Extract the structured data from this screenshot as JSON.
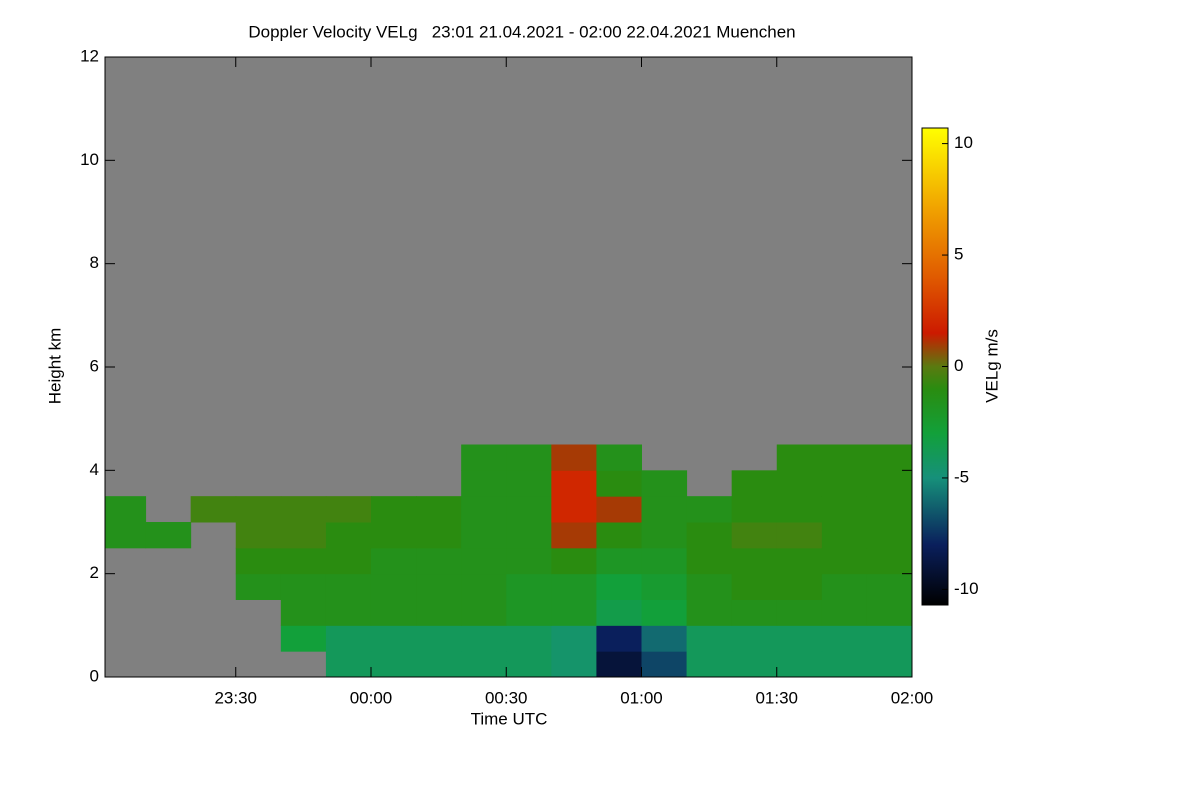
{
  "chart_data": {
    "type": "heatmap",
    "title": "Doppler Velocity VELg   23:01 21.04.2021 - 02:00 22.04.2021 Muenchen",
    "x_label": "Time UTC",
    "y_label": "Height km",
    "colorbar_label": "VELg m/s",
    "background_color": "#808080",
    "xlim": [
      1,
      180
    ],
    "xticks": [
      {
        "value": 30,
        "label": "23:30"
      },
      {
        "value": 60,
        "label": "00:00"
      },
      {
        "value": 90,
        "label": "00:30"
      },
      {
        "value": 120,
        "label": "01:00"
      },
      {
        "value": 150,
        "label": "01:30"
      },
      {
        "value": 180,
        "label": "02:00"
      }
    ],
    "ylim": [
      0,
      12
    ],
    "yticks": [
      0,
      2,
      4,
      6,
      8,
      10,
      12
    ],
    "zlim": [
      -10.7,
      10.7
    ],
    "zticks": [
      -10,
      -5,
      0,
      5,
      10
    ],
    "colorscale": [
      {
        "value": -10.7,
        "color": "#000000"
      },
      {
        "value": -8,
        "color": "#0a1f5c"
      },
      {
        "value": -5,
        "color": "#16907a"
      },
      {
        "value": -3,
        "color": "#12a03a"
      },
      {
        "value": -1,
        "color": "#2a8c10"
      },
      {
        "value": 0,
        "color": "#5a7a10"
      },
      {
        "value": 1.5,
        "color": "#cc1a00"
      },
      {
        "value": 4,
        "color": "#e05a00"
      },
      {
        "value": 7,
        "color": "#f0a000"
      },
      {
        "value": 10.7,
        "color": "#ffff00"
      }
    ],
    "x_bins": [
      0,
      10,
      20,
      30,
      40,
      50,
      60,
      70,
      80,
      90,
      100,
      110,
      120,
      130,
      140,
      150,
      160,
      170,
      180
    ],
    "y_bins": [
      0,
      0.5,
      1,
      1.5,
      2,
      2.5,
      3,
      3.5,
      4,
      4.5
    ],
    "values": [
      [
        null,
        null,
        null,
        null,
        null,
        -4,
        -4,
        -4,
        -4,
        -4,
        -4.5,
        -9,
        -7,
        -4,
        -4,
        -4,
        -4,
        -4
      ],
      [
        null,
        null,
        null,
        null,
        -3,
        -4,
        -4,
        -4,
        -4,
        -4,
        -4.5,
        -8,
        -6,
        -4,
        -4,
        -4,
        -4,
        -4
      ],
      [
        null,
        null,
        null,
        null,
        -1.5,
        -1.5,
        -1.5,
        -1.5,
        -1.5,
        -2,
        -2,
        -3.5,
        -3,
        -1.5,
        -1.5,
        -1.5,
        -1.5,
        -1.5
      ],
      [
        null,
        null,
        null,
        -1.5,
        -1.5,
        -1.5,
        -1.5,
        -1.5,
        -1.5,
        -2,
        -2,
        -3,
        -2.5,
        -1.5,
        -1,
        -1,
        -1.5,
        -1.5
      ],
      [
        null,
        null,
        null,
        -1,
        -1,
        -1,
        -1.5,
        -1.5,
        -1.5,
        -1.5,
        -1,
        -2,
        -2,
        -1,
        -1,
        -1,
        -1,
        -1
      ],
      [
        -1.5,
        -1.5,
        null,
        -0.5,
        -0.5,
        -1,
        -1,
        -1,
        -1.5,
        -1.5,
        1,
        -1,
        -1.5,
        -1,
        -0.5,
        -0.5,
        -1,
        -1
      ],
      [
        -1.5,
        null,
        -0.5,
        -0.5,
        -0.5,
        -0.5,
        -1,
        -1,
        -1.5,
        -1.5,
        2,
        1,
        -1.5,
        -1.5,
        -1,
        -1,
        -1,
        -1
      ],
      [
        null,
        null,
        null,
        null,
        null,
        null,
        null,
        null,
        -1.5,
        -1.5,
        2,
        -1,
        -1.5,
        null,
        -1,
        -1,
        -1,
        -1
      ],
      [
        null,
        null,
        null,
        null,
        null,
        null,
        null,
        null,
        -1.5,
        -1.5,
        1,
        -1.5,
        null,
        null,
        null,
        -1,
        -1,
        -1
      ]
    ]
  }
}
